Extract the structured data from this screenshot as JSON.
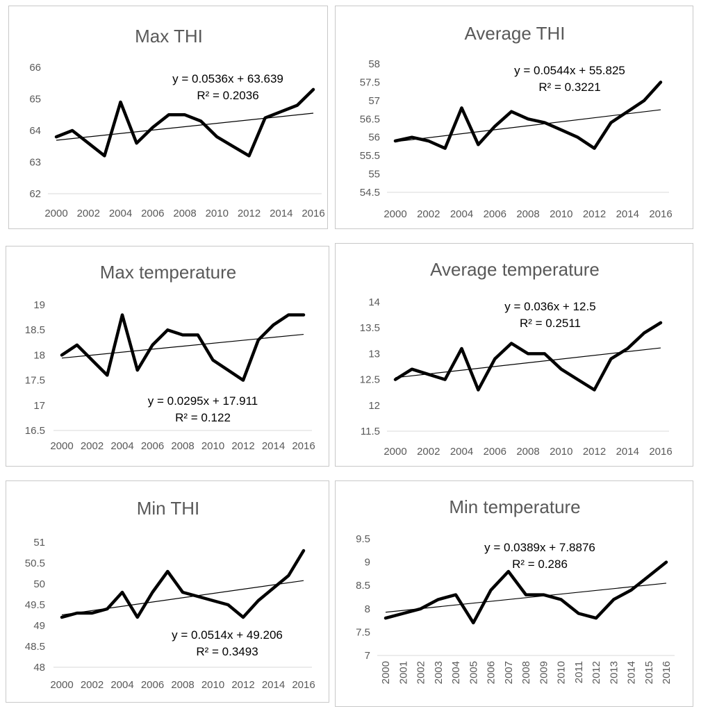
{
  "chart_data": [
    {
      "type": "line",
      "title": "Max THI",
      "x": [
        2000,
        2001,
        2002,
        2003,
        2004,
        2005,
        2006,
        2007,
        2008,
        2009,
        2010,
        2011,
        2012,
        2013,
        2014,
        2015,
        2016
      ],
      "x_tick_labels": [
        "2000",
        "2002",
        "2004",
        "2006",
        "2008",
        "2010",
        "2012",
        "2014",
        "2016"
      ],
      "y_tick_labels": [
        "62",
        "63",
        "64",
        "65",
        "66"
      ],
      "ylim": [
        62,
        66
      ],
      "series": [
        {
          "values": [
            63.8,
            64.0,
            63.6,
            63.2,
            64.9,
            63.6,
            64.1,
            64.5,
            64.5,
            64.3,
            63.8,
            63.5,
            63.2,
            64.4,
            64.6,
            64.8,
            65.3
          ]
        }
      ],
      "trendline": {
        "slope": 0.0536,
        "intercept": 63.639
      },
      "equation": "y = 0.0536x + 63.639",
      "r_squared": "R² = 0.2036",
      "grid": false
    },
    {
      "type": "line",
      "title": "Average THI",
      "x": [
        2000,
        2001,
        2002,
        2003,
        2004,
        2005,
        2006,
        2007,
        2008,
        2009,
        2010,
        2011,
        2012,
        2013,
        2014,
        2015,
        2016
      ],
      "x_tick_labels": [
        "2000",
        "2002",
        "2004",
        "2006",
        "2008",
        "2010",
        "2012",
        "2014",
        "2016"
      ],
      "y_tick_labels": [
        "54.5",
        "55",
        "55.5",
        "56",
        "56.5",
        "57",
        "57.5",
        "58"
      ],
      "ylim": [
        54.5,
        58
      ],
      "series": [
        {
          "values": [
            55.9,
            56.0,
            55.9,
            55.7,
            56.8,
            55.8,
            56.3,
            56.7,
            56.5,
            56.4,
            56.2,
            56.0,
            55.7,
            56.4,
            56.7,
            57.0,
            57.5
          ]
        }
      ],
      "trendline": {
        "slope": 0.0544,
        "intercept": 55.825
      },
      "equation": "y = 0.0544x + 55.825",
      "r_squared": "R² = 0.3221",
      "grid": false
    },
    {
      "type": "line",
      "title": "Max temperature",
      "x": [
        2000,
        2001,
        2002,
        2003,
        2004,
        2005,
        2006,
        2007,
        2008,
        2009,
        2010,
        2011,
        2012,
        2013,
        2014,
        2015,
        2016
      ],
      "x_tick_labels": [
        "2000",
        "2002",
        "2004",
        "2006",
        "2008",
        "2010",
        "2012",
        "2014",
        "2016"
      ],
      "y_tick_labels": [
        "16.5",
        "17",
        "17.5",
        "18",
        "18.5",
        "19"
      ],
      "ylim": [
        16.5,
        19
      ],
      "series": [
        {
          "values": [
            18.0,
            18.2,
            17.9,
            17.6,
            18.8,
            17.7,
            18.2,
            18.5,
            18.4,
            18.4,
            17.9,
            17.7,
            17.5,
            18.3,
            18.6,
            18.8,
            18.8
          ]
        }
      ],
      "trendline": {
        "slope": 0.0295,
        "intercept": 17.911
      },
      "equation": "y = 0.0295x + 17.911",
      "r_squared": "R² = 0.122",
      "grid": false
    },
    {
      "type": "line",
      "title": "Average temperature",
      "x": [
        2000,
        2001,
        2002,
        2003,
        2004,
        2005,
        2006,
        2007,
        2008,
        2009,
        2010,
        2011,
        2012,
        2013,
        2014,
        2015,
        2016
      ],
      "x_tick_labels": [
        "2000",
        "2002",
        "2004",
        "2006",
        "2008",
        "2010",
        "2012",
        "2014",
        "2016"
      ],
      "y_tick_labels": [
        "11.5",
        "12",
        "12.5",
        "13",
        "13.5",
        "14"
      ],
      "ylim": [
        11.5,
        14
      ],
      "series": [
        {
          "values": [
            12.5,
            12.7,
            12.6,
            12.5,
            13.1,
            12.3,
            12.9,
            13.2,
            13.0,
            13.0,
            12.7,
            12.5,
            12.3,
            12.9,
            13.1,
            13.4,
            13.6
          ]
        }
      ],
      "trendline": {
        "slope": 0.036,
        "intercept": 12.5
      },
      "equation": "y = 0.036x + 12.5",
      "r_squared": "R² = 0.2511",
      "grid": false
    },
    {
      "type": "line",
      "title": "Min THI",
      "x": [
        2000,
        2001,
        2002,
        2003,
        2004,
        2005,
        2006,
        2007,
        2008,
        2009,
        2010,
        2011,
        2012,
        2013,
        2014,
        2015,
        2016
      ],
      "x_tick_labels": [
        "2000",
        "2002",
        "2004",
        "2006",
        "2008",
        "2010",
        "2012",
        "2014",
        "2016"
      ],
      "y_tick_labels": [
        "48",
        "48.5",
        "49",
        "49.5",
        "50",
        "50.5",
        "51"
      ],
      "ylim": [
        48,
        51
      ],
      "series": [
        {
          "values": [
            49.2,
            49.3,
            49.3,
            49.4,
            49.8,
            49.2,
            49.8,
            50.3,
            49.8,
            49.7,
            49.6,
            49.5,
            49.2,
            49.6,
            49.9,
            50.2,
            50.8
          ]
        }
      ],
      "trendline": {
        "slope": 0.0514,
        "intercept": 49.206
      },
      "equation": "y = 0.0514x + 49.206",
      "r_squared": "R² = 0.3493",
      "grid": false
    },
    {
      "type": "line",
      "title": "Min temperature",
      "x": [
        2000,
        2001,
        2002,
        2003,
        2004,
        2005,
        2006,
        2007,
        2008,
        2009,
        2010,
        2011,
        2012,
        2013,
        2014,
        2015,
        2016
      ],
      "x_tick_labels": [
        "2000",
        "2001",
        "2002",
        "2003",
        "2004",
        "2005",
        "2006",
        "2007",
        "2008",
        "2009",
        "2010",
        "2011",
        "2012",
        "2013",
        "2014",
        "2015",
        "2016"
      ],
      "x_tick_rotation": "vertical",
      "y_tick_labels": [
        "7",
        "7.5",
        "8",
        "8.5",
        "9",
        "9.5"
      ],
      "ylim": [
        7,
        9.5
      ],
      "series": [
        {
          "values": [
            7.8,
            7.9,
            8.0,
            8.2,
            8.3,
            7.7,
            8.4,
            8.8,
            8.3,
            8.3,
            8.2,
            7.9,
            7.8,
            8.2,
            8.4,
            8.7,
            9.0
          ]
        }
      ],
      "trendline": {
        "slope": 0.0389,
        "intercept": 7.8876
      },
      "equation": "y = 0.0389x + 7.8876",
      "r_squared": "R² = 0.286",
      "grid": false
    }
  ]
}
